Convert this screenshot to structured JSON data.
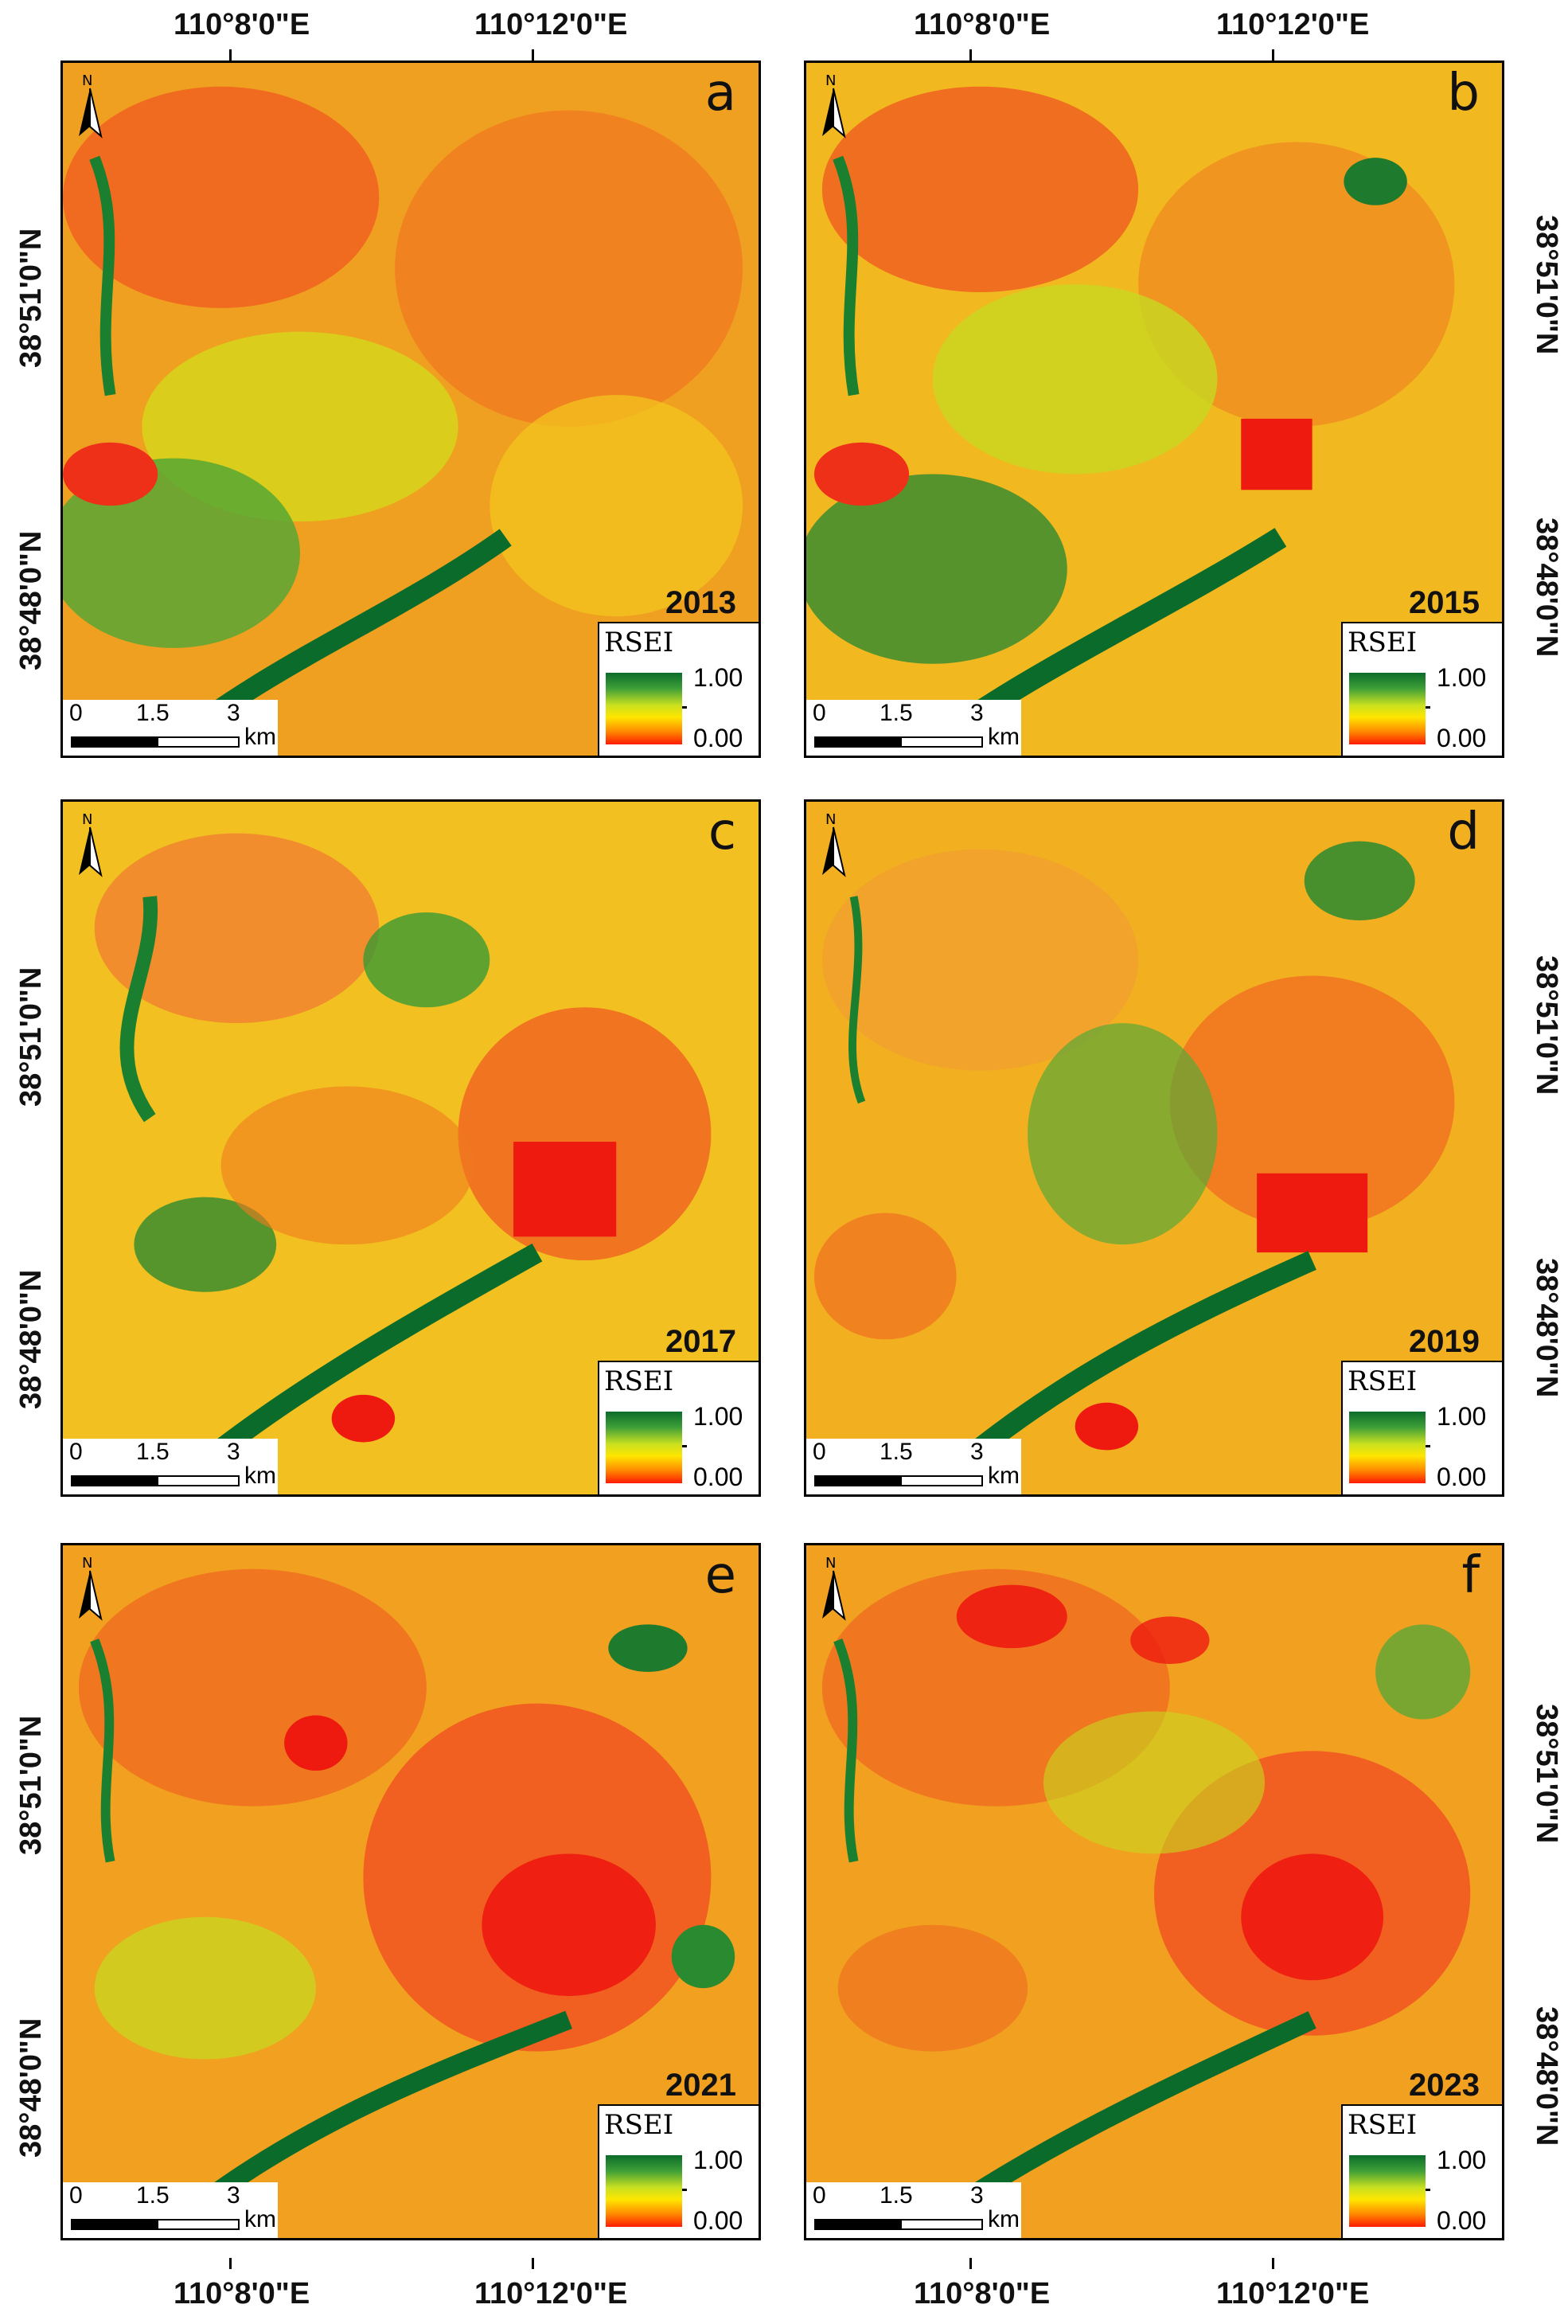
{
  "figure": {
    "longitude_labels": [
      "110°8'0\"E",
      "110°12'0\"E"
    ],
    "latitude_labels": [
      "38°51'0\"N",
      "38°48'0\"N"
    ],
    "north_label": "N",
    "legend": {
      "title": "RSEI",
      "max": "1.00",
      "min": "0.00"
    },
    "scalebar": {
      "ticks": [
        "0",
        "1.5",
        "3"
      ],
      "unit": "km"
    },
    "colors": {
      "high": "#0b6b2a",
      "mid_high": "#3fa038",
      "mid": "#ffe600",
      "mid_low": "#ff8a00",
      "low": "#ff1a00"
    },
    "panels": [
      {
        "letter": "a",
        "year": "2013"
      },
      {
        "letter": "b",
        "year": "2015"
      },
      {
        "letter": "c",
        "year": "2017"
      },
      {
        "letter": "d",
        "year": "2019"
      },
      {
        "letter": "e",
        "year": "2021"
      },
      {
        "letter": "f",
        "year": "2023"
      }
    ]
  }
}
